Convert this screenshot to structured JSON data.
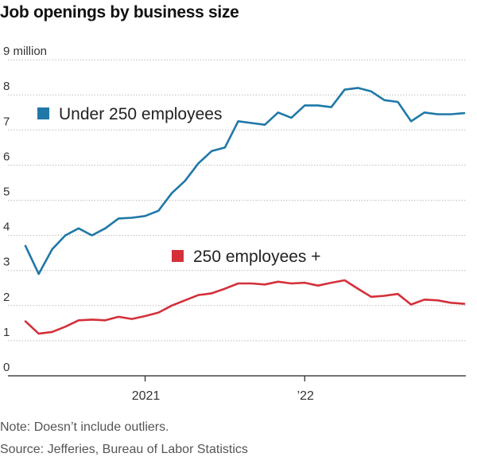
{
  "title": "Job openings by business size",
  "chart_data": {
    "type": "line",
    "title": "Job openings by business size",
    "ylabel": "9 million",
    "ylim": [
      0,
      9
    ],
    "y_ticks": [
      0,
      1,
      2,
      3,
      4,
      5,
      6,
      7,
      8,
      9
    ],
    "y_tick_labels": [
      "0",
      "1",
      "2",
      "3",
      "4",
      "5",
      "6",
      "7",
      "8",
      "9 million"
    ],
    "x_tick_labels": [
      "2021",
      "’22"
    ],
    "grid": true,
    "x": [
      "2020-04",
      "2020-05",
      "2020-06",
      "2020-07",
      "2020-08",
      "2020-09",
      "2020-10",
      "2020-11",
      "2020-12",
      "2021-01",
      "2021-02",
      "2021-03",
      "2021-04",
      "2021-05",
      "2021-06",
      "2021-07",
      "2021-08",
      "2021-09",
      "2021-10",
      "2021-11",
      "2021-12",
      "2022-01",
      "2022-02",
      "2022-03",
      "2022-04",
      "2022-05",
      "2022-06",
      "2022-07",
      "2022-08",
      "2022-09",
      "2022-10",
      "2022-11",
      "2022-12",
      "2023-01"
    ],
    "series": [
      {
        "name": "Under 250 employees",
        "color": "#1f78a8",
        "values": [
          3.7,
          2.9,
          3.6,
          4.0,
          4.2,
          4.0,
          4.2,
          4.48,
          4.5,
          4.55,
          4.7,
          5.2,
          5.55,
          6.05,
          6.4,
          6.5,
          7.25,
          7.2,
          7.15,
          7.5,
          7.35,
          7.7,
          7.7,
          7.65,
          8.15,
          8.2,
          8.1,
          7.85,
          7.8,
          7.25,
          7.5,
          7.45,
          7.45,
          7.48
        ]
      },
      {
        "name": "250 employees +",
        "color": "#d4303a",
        "values": [
          1.55,
          1.2,
          1.25,
          1.4,
          1.58,
          1.6,
          1.58,
          1.68,
          1.62,
          1.7,
          1.8,
          2.0,
          2.15,
          2.3,
          2.35,
          2.48,
          2.63,
          2.63,
          2.6,
          2.68,
          2.63,
          2.65,
          2.57,
          2.65,
          2.72,
          2.48,
          2.25,
          2.28,
          2.33,
          2.03,
          2.17,
          2.15,
          2.08,
          2.05
        ]
      }
    ]
  },
  "footer": {
    "note": "Note: Doesn’t include outliers.",
    "source": "Source: Jefferies, Bureau of Labor Statistics"
  }
}
